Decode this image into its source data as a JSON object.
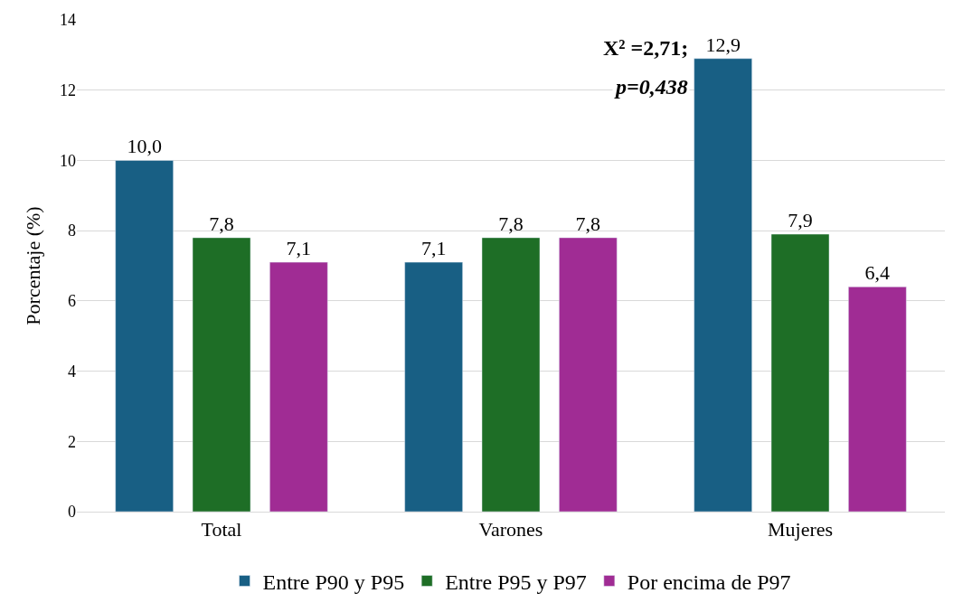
{
  "chart_data": {
    "type": "bar",
    "ylabel": "Porcentaje (%)",
    "categories": [
      "Total",
      "Varones",
      "Mujeres"
    ],
    "series": [
      {
        "name": "Entre P90 y P95",
        "color": "#185f84",
        "values": [
          10.0,
          7.1,
          12.9
        ],
        "value_labels": [
          "10,0",
          "7,1",
          "12,9"
        ]
      },
      {
        "name": "Entre P95 y P97",
        "color": "#1e6e26",
        "values": [
          7.8,
          7.8,
          7.9
        ],
        "value_labels": [
          "7,8",
          "7,8",
          "7,9"
        ]
      },
      {
        "name": "Por encima de P97",
        "color": "#a02c94",
        "values": [
          7.1,
          7.8,
          6.4
        ],
        "value_labels": [
          "7,1",
          "7,8",
          "6,4"
        ]
      }
    ],
    "ylim": [
      0,
      14
    ],
    "yticks": [
      0,
      2,
      4,
      6,
      8,
      10,
      12,
      14
    ],
    "grid": "y",
    "legend": "bottom",
    "annotations": [
      "X² =2,71;",
      "p=0,438"
    ]
  }
}
